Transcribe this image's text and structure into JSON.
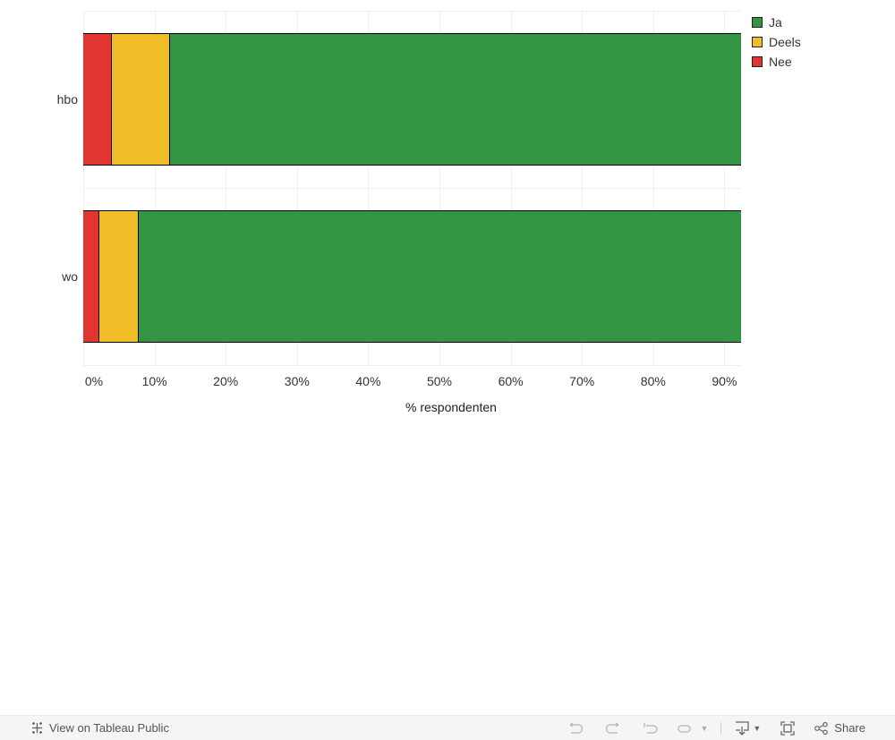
{
  "chart_data": {
    "type": "bar",
    "orientation": "horizontal",
    "stacked": true,
    "categories": [
      "hbo",
      "wo"
    ],
    "series": [
      {
        "name": "Nee",
        "color": "#e03531",
        "values": [
          4.0,
          2.3
        ]
      },
      {
        "name": "Deels",
        "color": "#f0bd27",
        "values": [
          8.2,
          5.5
        ]
      },
      {
        "name": "Ja",
        "color": "#339444",
        "values": [
          87.8,
          92.2
        ]
      }
    ],
    "title": "",
    "xlabel": "% respondenten",
    "ylabel": "",
    "xlim": [
      0,
      92.3
    ],
    "x_ticks": [
      "0%",
      "10%",
      "20%",
      "30%",
      "40%",
      "50%",
      "60%",
      "70%",
      "80%",
      "90%"
    ],
    "grid": true,
    "legend": {
      "position": "right",
      "entries": [
        "Ja",
        "Deels",
        "Nee"
      ]
    }
  },
  "legend": [
    {
      "label": "Ja",
      "color": "#339444"
    },
    {
      "label": "Deels",
      "color": "#f0bd27"
    },
    {
      "label": "Nee",
      "color": "#e03531"
    }
  ],
  "footer": {
    "view_label": "View on Tableau Public",
    "share_label": "Share"
  }
}
